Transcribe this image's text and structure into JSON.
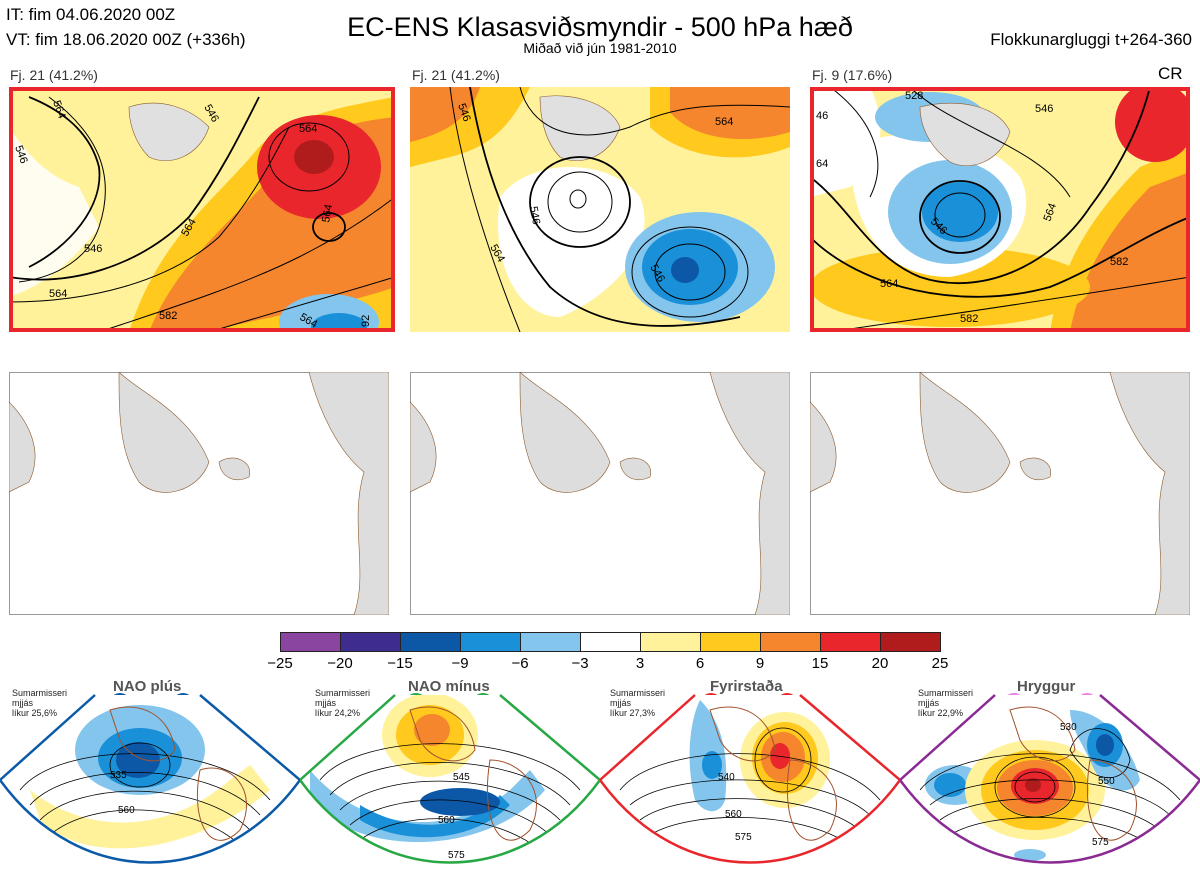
{
  "header": {
    "it_line": "IT: fim 04.06.2020 00Z",
    "vt_line": "VT: fim 18.06.2020 00Z  (+336h)",
    "title": "EC-ENS Klasasviðsmyndir - 500 hPa hæð",
    "subtitle": "Miðað við jún 1981-2010",
    "window": "Flokkunargluggi t+264-360"
  },
  "clusters": [
    {
      "label": "Fj. 21 (41.2%)",
      "tag": ""
    },
    {
      "label": "Fj. 21 (41.2%)",
      "tag": ""
    },
    {
      "label": "Fj. 9 (17.6%)",
      "tag": "CR"
    }
  ],
  "contour_labels": {
    "map1": [
      "546",
      "564",
      "564",
      "546",
      "564",
      "564",
      "564",
      "582",
      "564",
      "92",
      "546"
    ],
    "map2": [
      "546",
      "546",
      "564",
      "564",
      "546"
    ],
    "map3": [
      "528",
      "546",
      "64",
      "546",
      "564",
      "564",
      "582",
      "582",
      "46"
    ]
  },
  "colorbar": {
    "ticks": [
      "−25",
      "−20",
      "−15",
      "−9",
      "−6",
      "−3",
      "3",
      "6",
      "9",
      "15",
      "20",
      "25"
    ],
    "colors": [
      "#8a45a0",
      "#3e2c8f",
      "#0c58a6",
      "#1a90d8",
      "#83c5ec",
      "#ffffff",
      "#fff29a",
      "#ffc91d",
      "#f5862e",
      "#e8262b",
      "#b01c1c"
    ]
  },
  "regimes": [
    {
      "name": "NAO plús",
      "note": "Sumarmisseri\nmjjás\nlíkur 25,6%",
      "color": "#0b5aa8",
      "dot": "#0b5aa8",
      "contours": [
        "535",
        "560"
      ]
    },
    {
      "name": "NAO mínus",
      "note": "Sumarmisseri\nmjjás\nlíkur 24,2%",
      "color": "#27a844",
      "dot": "#27a844",
      "contours": [
        "545",
        "560",
        "575"
      ]
    },
    {
      "name": "Fyrirstaða",
      "note": "Sumarmisseri\nmjjás\nlíkur 27,3%",
      "color": "#e8262b",
      "dot": "#e8262b",
      "contours": [
        "540",
        "560",
        "575"
      ]
    },
    {
      "name": "Hryggur",
      "note": "Sumarmisseri\nmjjás\nlíkur 22,9%",
      "color": "#8a2a93",
      "dot": "#ee7ee8",
      "contours": [
        "530",
        "550",
        "575"
      ]
    }
  ]
}
